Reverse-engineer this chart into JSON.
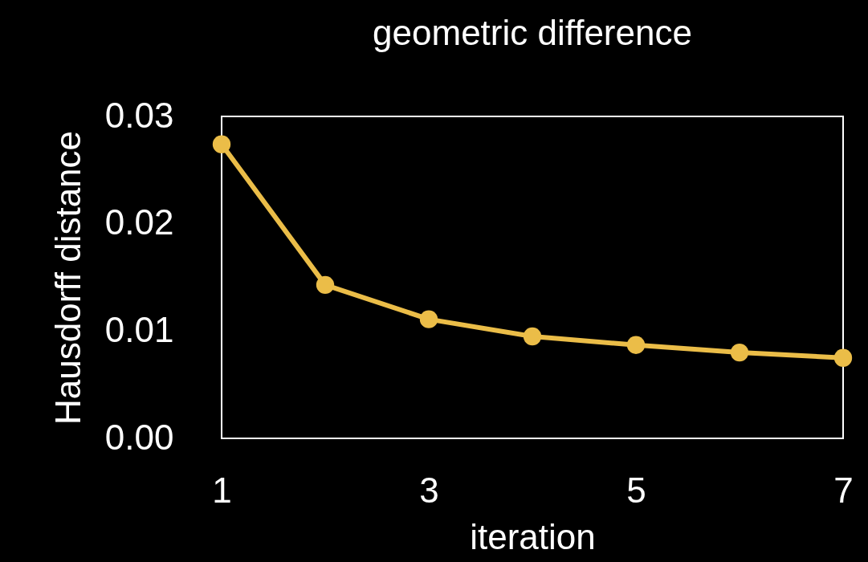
{
  "chart_data": {
    "type": "line",
    "title": "geometric difference",
    "xlabel": "iteration",
    "ylabel": "Hausdorff distance",
    "x": [
      1,
      2,
      3,
      4,
      5,
      6,
      7
    ],
    "series": [
      {
        "color": "#ebbd48",
        "values": [
          0.0274,
          0.0143,
          0.0111,
          0.0095,
          0.0087,
          0.008,
          0.0075
        ]
      }
    ],
    "xlim": [
      1,
      7
    ],
    "xticks": [
      1,
      3,
      5,
      7
    ],
    "ylim": [
      0,
      0.03
    ],
    "yticks": [
      {
        "value": 0,
        "label": "0.00"
      },
      0.01,
      0.02,
      0.03
    ],
    "grid": false,
    "marker": "circle",
    "line_style": "solid"
  }
}
